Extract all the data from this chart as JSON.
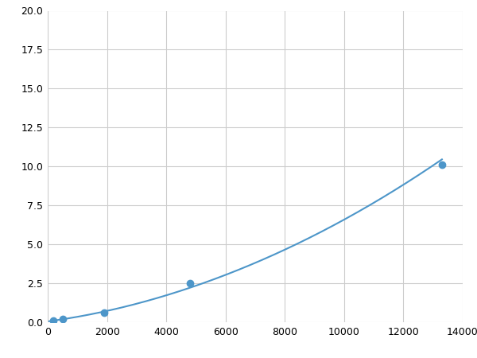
{
  "x_data": [
    200,
    500,
    1900,
    4800,
    13300
  ],
  "y_data": [
    0.1,
    0.2,
    0.6,
    2.5,
    10.1
  ],
  "line_color": "#4d96c9",
  "marker_color": "#4d96c9",
  "marker_size": 6,
  "line_width": 1.5,
  "xlim": [
    0,
    14000
  ],
  "ylim": [
    0,
    20
  ],
  "x_ticks": [
    0,
    2000,
    4000,
    6000,
    8000,
    10000,
    12000,
    14000
  ],
  "x_tick_labels": [
    "0",
    "2000",
    "4000",
    "6000",
    "8000",
    "10000",
    "12000",
    "14000"
  ],
  "y_ticks": [
    0.0,
    2.5,
    5.0,
    7.5,
    10.0,
    12.5,
    15.0,
    17.5,
    20.0
  ],
  "y_tick_labels": [
    "0.0",
    "2.5",
    "5.0",
    "7.5",
    "10.0",
    "12.5",
    "15.0",
    "17.5",
    "20.0"
  ],
  "grid_color": "#cccccc",
  "background_color": "#ffffff",
  "fig_width": 6.0,
  "fig_height": 4.5,
  "dpi": 100
}
